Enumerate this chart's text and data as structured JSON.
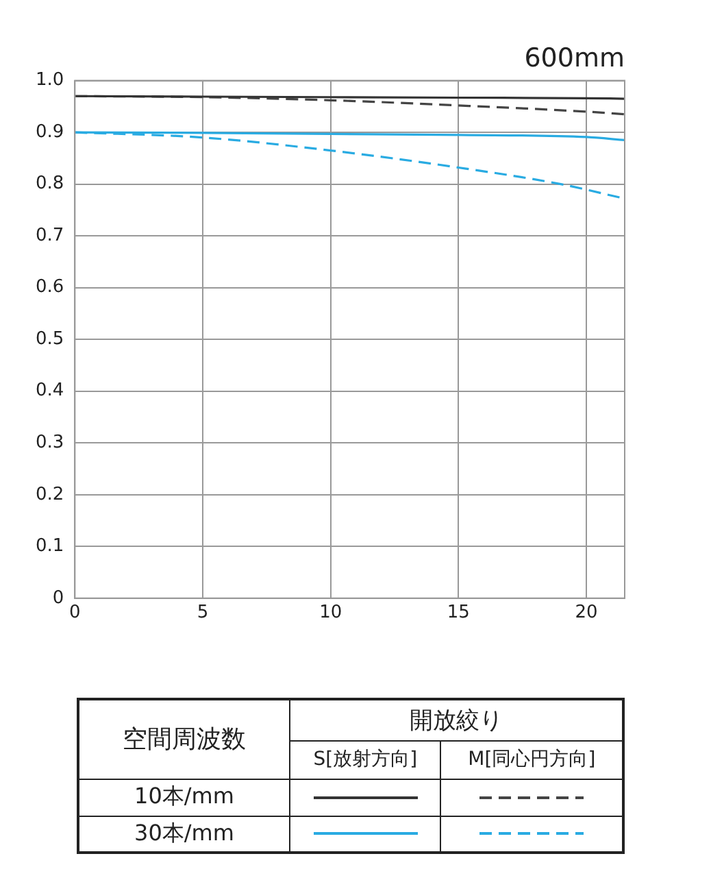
{
  "chart_data": {
    "type": "line",
    "title": "600mm",
    "xlim": [
      0,
      21.5
    ],
    "xticks": [
      0,
      5,
      10,
      15,
      20
    ],
    "ylim": [
      0,
      1
    ],
    "yticks": [
      0,
      0.1,
      0.2,
      0.3,
      0.4,
      0.5,
      0.6,
      0.7,
      0.8,
      0.9,
      {
        "value": 1,
        "label": "1.0"
      }
    ],
    "grid": true,
    "marker": "none",
    "legend_title": "空間周波数",
    "annotations": [
      "開放絞り",
      "S[放射方向]",
      "M[同心円方向]",
      "10本/mm",
      "30本/mm"
    ],
    "series": [
      {
        "color": "#333333",
        "line_style": "solid",
        "x": [
          0,
          5,
          10,
          15,
          20,
          21.5
        ],
        "values": [
          0.97,
          0.969,
          0.968,
          0.967,
          0.966,
          0.965
        ]
      },
      {
        "color": "#444444",
        "line_style": "dashed",
        "x": [
          0,
          5,
          10,
          15,
          20,
          21.5
        ],
        "values": [
          0.97,
          0.968,
          0.962,
          0.952,
          0.94,
          0.935
        ]
      },
      {
        "color": "#29abe2",
        "line_style": "solid",
        "x": [
          0,
          5,
          10,
          15,
          20,
          21.5
        ],
        "values": [
          0.9,
          0.899,
          0.897,
          0.895,
          0.891,
          0.885
        ]
      },
      {
        "color": "#29abe2",
        "line_style": "dashed",
        "x": [
          0,
          5,
          10,
          15,
          19,
          21.5
        ],
        "values": [
          0.9,
          0.89,
          0.865,
          0.832,
          0.8,
          0.772
        ]
      }
    ]
  }
}
